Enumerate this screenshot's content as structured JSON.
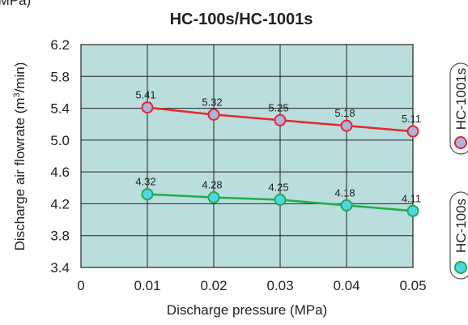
{
  "unit_fragment": "(MPa)",
  "chart_data": {
    "type": "line",
    "title": "HC-100s/HC-1001s",
    "xlabel": "Discharge pressure (MPa)",
    "ylabel": "Discharge air flowrate (m³/min)",
    "x": [
      0.01,
      0.02,
      0.03,
      0.04,
      0.05
    ],
    "x_ticks": [
      "0",
      "0.01",
      "0.02",
      "0.03",
      "0.04",
      "0.05"
    ],
    "xlim": [
      0,
      0.05
    ],
    "y_ticks": [
      "3.4",
      "3.8",
      "4.2",
      "4.6",
      "5.0",
      "5.4",
      "5.8",
      "6.2"
    ],
    "ylim": [
      3.4,
      6.2
    ],
    "grid": true,
    "plot_background": "#b9dedd",
    "legend_placement": "right",
    "series": [
      {
        "name": "HC-1001s",
        "values": [
          5.41,
          5.32,
          5.25,
          5.18,
          5.11
        ],
        "labels": [
          "5.41",
          "5.32",
          "5.25",
          "5.18",
          "5.11"
        ],
        "line_color": "#e8262a",
        "marker_fill": "#aab4dc",
        "marker_edge": "#e8262a"
      },
      {
        "name": "HC-100s",
        "values": [
          4.32,
          4.28,
          4.25,
          4.18,
          4.11
        ],
        "labels": [
          "4.32",
          "4.28",
          "4.25",
          "4.18",
          "4.11"
        ],
        "line_color": "#1fae4b",
        "marker_fill": "#4fd6e6",
        "marker_edge": "#1fae4b"
      }
    ]
  }
}
